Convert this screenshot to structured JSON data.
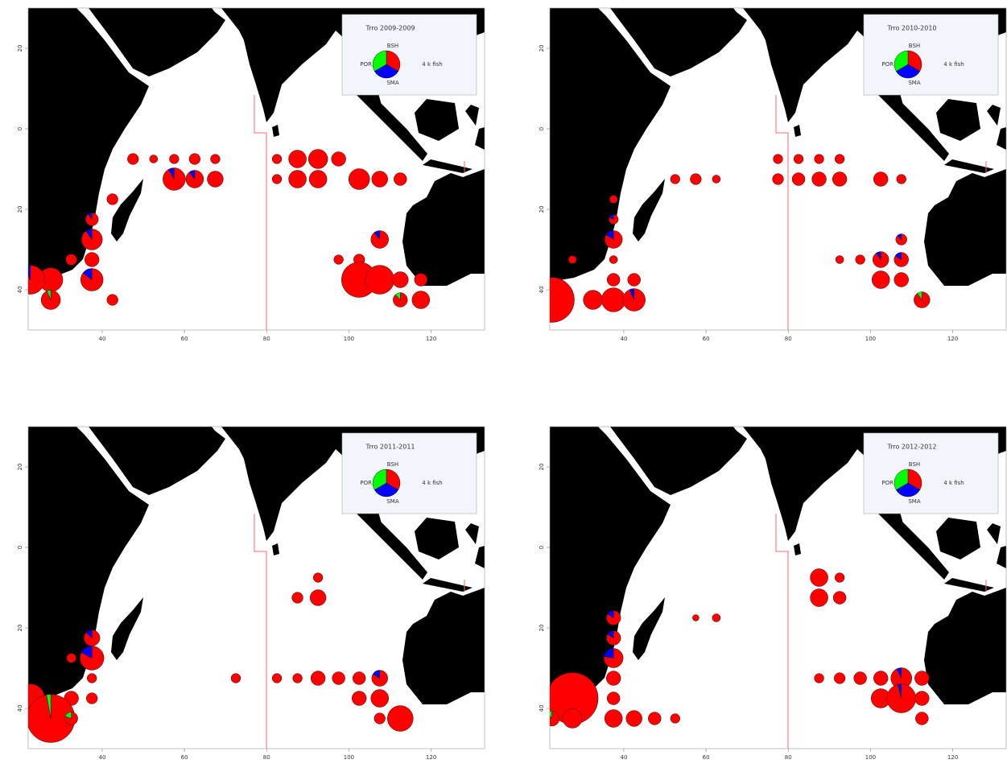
{
  "chart_data": [
    {
      "type": "pie-map",
      "title": "Trro 2009-2009",
      "size_label": "4 k fish",
      "xlim": [
        22,
        133
      ],
      "ylim": [
        -50,
        30
      ],
      "xticks": [
        40,
        60,
        80,
        100,
        120
      ],
      "yticks": [
        20,
        0,
        {
          "value": -20,
          "label": "20"
        },
        {
          "value": -40,
          "label": "40"
        }
      ],
      "x": [
        57.5,
        62.5,
        67.5,
        62.5,
        57.5,
        67.5,
        52.5,
        47.5,
        82.5,
        87.5,
        92.5,
        97.5,
        82.5,
        87.5,
        92.5,
        102.5,
        107.5,
        112.5,
        42.5,
        37.5,
        37.5,
        37.5,
        32.5,
        37.5,
        27.5,
        22.5,
        27.5,
        42.5,
        107.5,
        97.5,
        102.5,
        102.5,
        107.5,
        112.5,
        117.5,
        112.5,
        117.5
      ],
      "y": [
        -12.5,
        -12.5,
        -12.5,
        -7.5,
        -7.5,
        -7.5,
        -7.5,
        -7.5,
        -7.5,
        -7.5,
        -7.5,
        -7.5,
        -12.5,
        -12.5,
        -12.5,
        -12.5,
        -12.5,
        -12.5,
        -17.5,
        -22.5,
        -27.5,
        -32.5,
        -32.5,
        -37.5,
        -37.5,
        -37.5,
        -42.5,
        -42.5,
        -27.5,
        -32.5,
        -32.5,
        -37.5,
        -37.5,
        -37.5,
        -37.5,
        -42.5,
        -42.5
      ],
      "series": [
        {
          "name": "BSH",
          "color": "#ff0000",
          "values": [
            2.8,
            1.7,
            1.55,
            0.75,
            0.55,
            0.55,
            0.4,
            0.75,
            0.55,
            1.9,
            2.25,
            1.25,
            0.55,
            1.9,
            1.9,
            2.65,
            1.55,
            1,
            0.75,
            0.9,
            2.4,
            1.25,
            0.75,
            2.6,
            3.5,
            4.7,
            2.1,
            0.75,
            1.7,
            0.55,
            0.75,
            7.55,
            5.05,
            1.55,
            1,
            1.1,
            1.9
          ]
        },
        {
          "name": "SMA",
          "color": "#0000ff",
          "values": [
            0.25,
            0.2,
            0,
            0,
            0,
            0,
            0,
            0,
            0,
            0,
            0,
            0,
            0,
            0,
            0,
            0,
            0,
            0,
            0,
            0.1,
            0.25,
            0,
            0,
            0.45,
            0,
            0.35,
            0,
            0,
            0.2,
            0,
            0,
            0,
            0,
            0,
            0,
            0,
            0
          ]
        },
        {
          "name": "POR",
          "color": "#00ff00",
          "values": [
            0,
            0,
            0,
            0,
            0,
            0,
            0,
            0,
            0,
            0,
            0,
            0,
            0,
            0,
            0,
            0,
            0,
            0,
            0,
            0,
            0,
            0,
            0,
            0,
            0,
            0,
            0.15,
            0,
            0,
            0,
            0,
            0,
            0,
            0,
            0,
            0.15,
            0
          ]
        }
      ]
    },
    {
      "type": "pie-map",
      "title": "Trro 2010-2010",
      "size_label": "4 k fish",
      "xlim": [
        22,
        133
      ],
      "ylim": [
        -50,
        30
      ],
      "xticks": [
        40,
        60,
        80,
        100,
        120
      ],
      "yticks": [
        20,
        0,
        {
          "value": -20,
          "label": "20"
        },
        {
          "value": -40,
          "label": "40"
        }
      ],
      "x": [
        77.5,
        82.5,
        87.5,
        92.5,
        52.5,
        57.5,
        62.5,
        77.5,
        82.5,
        87.5,
        92.5,
        102.5,
        107.5,
        37.5,
        37.5,
        37.5,
        37.5,
        27.5,
        37.5,
        42.5,
        22.5,
        32.5,
        37.5,
        42.5,
        107.5,
        92.5,
        97.5,
        102.5,
        107.5,
        102.5,
        107.5,
        112.5
      ],
      "y": [
        -7.5,
        -7.5,
        -7.5,
        -7.5,
        -12.5,
        -12.5,
        -12.5,
        -12.5,
        -12.5,
        -12.5,
        -12.5,
        -12.5,
        -12.5,
        -17.5,
        -22.5,
        -27.5,
        -32.5,
        -32.5,
        -37.5,
        -37.5,
        -42.5,
        -42.5,
        -42.5,
        -42.5,
        -27.5,
        -32.5,
        -32.5,
        -32.5,
        -32.5,
        -37.5,
        -37.5,
        -42.5
      ],
      "series": [
        {
          "name": "BSH",
          "color": "#ff0000",
          "values": [
            0.55,
            0.55,
            0.55,
            0.55,
            0.55,
            0.75,
            0.4,
            0.75,
            1,
            1.25,
            1.25,
            1.25,
            0.55,
            0.4,
            0.45,
            1.6,
            0.4,
            0.4,
            1,
            1,
            12.25,
            2.25,
            3.5,
            2.85,
            0.65,
            0.4,
            0.55,
            1.4,
            1.05,
            1.9,
            1.25,
            1.4
          ]
        },
        {
          "name": "SMA",
          "color": "#0000ff",
          "values": [
            0,
            0,
            0,
            0,
            0,
            0,
            0,
            0,
            0,
            0,
            0,
            0,
            0,
            0,
            0.1,
            0.3,
            0,
            0,
            0,
            0,
            0,
            0,
            0,
            0.2,
            0.1,
            0,
            0,
            0.15,
            0.2,
            0,
            0,
            0
          ]
        },
        {
          "name": "POR",
          "color": "#00ff00",
          "values": [
            0,
            0,
            0,
            0,
            0,
            0,
            0,
            0,
            0,
            0,
            0,
            0,
            0,
            0,
            0,
            0,
            0,
            0,
            0,
            0,
            0,
            0,
            0,
            0,
            0,
            0,
            0,
            0,
            0,
            0,
            0,
            0.15
          ]
        }
      ]
    },
    {
      "type": "pie-map",
      "title": "Trro 2011-2011",
      "size_label": "4 k fish",
      "xlim": [
        22,
        133
      ],
      "ylim": [
        -50,
        30
      ],
      "xticks": [
        40,
        60,
        80,
        100,
        120
      ],
      "yticks": [
        20,
        0,
        {
          "value": -20,
          "label": "20"
        },
        {
          "value": -40,
          "label": "40"
        }
      ],
      "x": [
        92.5,
        87.5,
        92.5,
        37.5,
        37.5,
        32.5,
        37.5,
        32.5,
        37.5,
        22.5,
        27.5,
        32.5,
        72.5,
        82.5,
        87.5,
        92.5,
        97.5,
        102.5,
        107.5,
        102.5,
        107.5,
        107.5,
        112.5
      ],
      "y": [
        -7.5,
        -12.5,
        -12.5,
        -22.5,
        -27.5,
        -27.5,
        -32.5,
        -37.5,
        -37.5,
        -37.5,
        -42.5,
        -42.5,
        -32.5,
        -32.5,
        -32.5,
        -32.5,
        -32.5,
        -32.5,
        -32.5,
        -37.5,
        -37.5,
        -42.5,
        -42.5
      ],
      "series": [
        {
          "name": "BSH",
          "color": "#ff0000",
          "values": [
            0.55,
            0.75,
            1.55,
            1.35,
            2.9,
            0.55,
            0.55,
            1.25,
            0.75,
            5.05,
            13.6,
            0.8,
            0.55,
            0.55,
            0.55,
            1.25,
            1,
            1,
            1.3,
            1.25,
            1.9,
            0.75,
            4
          ]
        },
        {
          "name": "SMA",
          "color": "#0000ff",
          "values": [
            0,
            0,
            0,
            0.2,
            0.6,
            0,
            0,
            0,
            0,
            0,
            0,
            0,
            0,
            0,
            0,
            0,
            0,
            0,
            0.25,
            0,
            0,
            0,
            0
          ]
        },
        {
          "name": "POR",
          "color": "#00ff00",
          "values": [
            0,
            0,
            0,
            0,
            0,
            0,
            0,
            0,
            0,
            0,
            0.4,
            0.2,
            0,
            0,
            0,
            0,
            0,
            0,
            0,
            0,
            0,
            0,
            0
          ]
        }
      ]
    },
    {
      "type": "pie-map",
      "title": "Trro 2012-2012",
      "size_label": "4 k fish",
      "xlim": [
        22,
        133
      ],
      "ylim": [
        -50,
        30
      ],
      "xticks": [
        40,
        60,
        80,
        100,
        120
      ],
      "yticks": [
        20,
        0,
        {
          "value": -20,
          "label": "20"
        },
        {
          "value": -40,
          "label": "40"
        }
      ],
      "x": [
        87.5,
        92.5,
        87.5,
        92.5,
        57.5,
        62.5,
        37.5,
        37.5,
        37.5,
        37.5,
        27.5,
        37.5,
        22.5,
        27.5,
        37.5,
        42.5,
        47.5,
        52.5,
        87.5,
        92.5,
        97.5,
        102.5,
        107.5,
        112.5,
        102.5,
        107.5,
        112.5,
        112.5
      ],
      "y": [
        -7.5,
        -7.5,
        -12.5,
        -12.5,
        -17.5,
        -17.5,
        -17.5,
        -22.5,
        -27.5,
        -32.5,
        -37.5,
        -37.5,
        -42.5,
        -42.5,
        -42.5,
        -42.5,
        -42.5,
        -42.5,
        -32.5,
        -32.5,
        -32.5,
        -32.5,
        -32.5,
        -32.5,
        -37.5,
        -37.5,
        -37.5,
        -42.5
      ],
      "series": [
        {
          "name": "BSH",
          "color": "#ff0000",
          "values": [
            1.9,
            0.55,
            1.9,
            1,
            0.25,
            0.4,
            1.05,
            1.05,
            1.75,
            1.25,
            16,
            1,
            1.25,
            2.25,
            1.9,
            1.55,
            1,
            0.55,
            0.55,
            0.75,
            1,
            1.25,
            2.45,
            1.25,
            2.25,
            4.85,
            1.25,
            1
          ]
        },
        {
          "name": "SMA",
          "color": "#0000ff",
          "values": [
            0,
            0,
            0,
            0,
            0,
            0,
            0.2,
            0.2,
            0.5,
            0,
            0,
            0,
            0,
            0,
            0,
            0,
            0,
            0,
            0,
            0,
            0,
            0,
            0.2,
            0,
            0,
            0.2,
            0,
            0
          ]
        },
        {
          "name": "POR",
          "color": "#00ff00",
          "values": [
            0,
            0,
            0,
            0,
            0,
            0,
            0,
            0,
            0,
            0,
            0,
            0,
            0.15,
            0,
            0,
            0,
            0,
            0,
            0,
            0,
            0,
            0,
            0,
            0,
            0,
            0,
            0,
            0
          ]
        }
      ]
    }
  ]
}
